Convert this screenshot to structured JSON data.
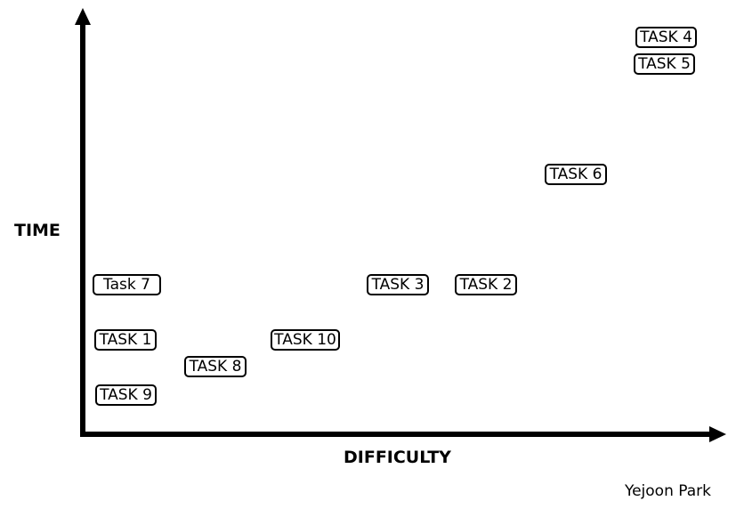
{
  "diagram": {
    "y_axis_label": "TIME",
    "x_axis_label": "DIFFICULTY",
    "tasks": [
      {
        "id": "task-4",
        "label": "TASK 4"
      },
      {
        "id": "task-5",
        "label": "TASK 5"
      },
      {
        "id": "task-6",
        "label": "TASK 6"
      },
      {
        "id": "task-7",
        "label": "Task 7"
      },
      {
        "id": "task-3",
        "label": "TASK 3"
      },
      {
        "id": "task-2",
        "label": "TASK 2"
      },
      {
        "id": "task-1",
        "label": "TASK 1"
      },
      {
        "id": "task-10",
        "label": "TASK 10"
      },
      {
        "id": "task-8",
        "label": "TASK 8"
      },
      {
        "id": "task-9",
        "label": "TASK 9"
      }
    ],
    "credit": "Yejoon Park"
  }
}
